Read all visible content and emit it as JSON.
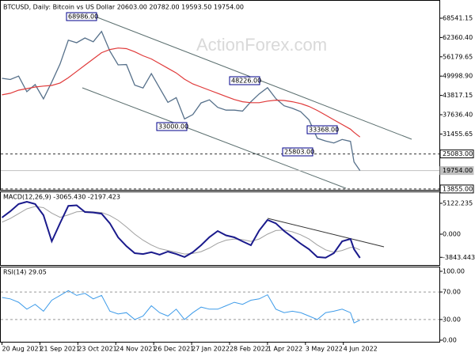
{
  "chart_data": [
    {
      "type": "line",
      "title": "BTCUSD, Daily: Bitcoin vs US Dollar  20603.00 20782.00 19593.50 19754.00",
      "watermark": "ActionForex.com",
      "x": [
        "2021-08-20",
        "2021-08-27",
        "2021-09-03",
        "2021-09-10",
        "2021-09-17",
        "2021-09-24",
        "2021-10-01",
        "2021-10-08",
        "2021-10-15",
        "2021-10-22",
        "2021-10-29",
        "2021-11-05",
        "2021-11-12",
        "2021-11-19",
        "2021-11-26",
        "2021-12-03",
        "2021-12-10",
        "2021-12-17",
        "2021-12-24",
        "2021-12-31",
        "2022-01-07",
        "2022-01-14",
        "2022-01-21",
        "2022-01-28",
        "2022-02-04",
        "2022-02-11",
        "2022-02-18",
        "2022-02-25",
        "2022-03-04",
        "2022-03-11",
        "2022-03-18",
        "2022-03-25",
        "2022-04-01",
        "2022-04-08",
        "2022-04-15",
        "2022-04-22",
        "2022-04-29",
        "2022-05-06",
        "2022-05-13",
        "2022-05-20",
        "2022-05-27",
        "2022-06-03",
        "2022-06-10",
        "2022-06-13",
        "2022-06-18"
      ],
      "xlim": [
        "2021-08-19",
        "2022-08-24"
      ],
      "series": [
        {
          "color": "#56708a",
          "width": 1.3,
          "values": [
            49300,
            48900,
            50000,
            45000,
            47300,
            42700,
            48100,
            53900,
            61500,
            60700,
            62200,
            61000,
            64300,
            58000,
            53600,
            53700,
            47100,
            46200,
            50800,
            46200,
            41600,
            43100,
            36300,
            37700,
            41400,
            42400,
            40000,
            39100,
            39100,
            38800,
            41800,
            44300,
            46300,
            42800,
            40500,
            39700,
            38600,
            36000,
            30100,
            29200,
            28600,
            29700,
            29100,
            22500,
            19754
          ]
        },
        {
          "color": "#e03a3a",
          "width": 1.2,
          "values": [
            44000,
            44500,
            45500,
            46000,
            46500,
            46800,
            47000,
            47800,
            49500,
            51500,
            53500,
            55500,
            57500,
            58500,
            59000,
            58800,
            57800,
            56500,
            55500,
            54000,
            52500,
            51000,
            49000,
            47500,
            46500,
            45500,
            44500,
            43500,
            42500,
            41800,
            41500,
            41500,
            42000,
            42300,
            42200,
            41800,
            41200,
            40300,
            39000,
            37500,
            36000,
            34500,
            33000,
            32000,
            30500
          ]
        }
      ],
      "ylim": [
        13575,
        73860
      ],
      "yticks": [
        {
          "value": 68541.15,
          "label": "68541.15"
        },
        {
          "value": 62360.4,
          "label": "62360.40"
        },
        {
          "value": 56179.65,
          "label": "56179.65"
        },
        {
          "value": 49998.9,
          "label": "49998.90"
        },
        {
          "value": 43817.15,
          "label": "43817.15"
        },
        {
          "value": 37636.4,
          "label": "37636.40"
        },
        {
          "value": 31455.65,
          "label": "31455.65"
        }
      ],
      "levels": [
        {
          "value": 25083,
          "label": "25083.00",
          "dashed": true,
          "color": "#333333"
        },
        {
          "value": 19754,
          "label": "19754.00",
          "dashed": false,
          "color": "#c0c0c0"
        },
        {
          "value": 13855,
          "label": "13855.00",
          "dashed": true,
          "color": "#333333"
        }
      ],
      "annotations": [
        "68986.00",
        "48226.00",
        "33000.00",
        "25803.00",
        "33368.00"
      ]
    },
    {
      "type": "line",
      "title": "MACD(12,26,9) -3065.430 -2197.423",
      "x": [
        "2021-08-20",
        "2021-08-27",
        "2021-09-03",
        "2021-09-10",
        "2021-09-17",
        "2021-09-24",
        "2021-10-01",
        "2021-10-08",
        "2021-10-15",
        "2021-10-22",
        "2021-10-29",
        "2021-11-05",
        "2021-11-12",
        "2021-11-19",
        "2021-11-26",
        "2021-12-03",
        "2021-12-10",
        "2021-12-17",
        "2021-12-24",
        "2021-12-31",
        "2022-01-07",
        "2022-01-14",
        "2022-01-21",
        "2022-01-28",
        "2022-02-04",
        "2022-02-11",
        "2022-02-18",
        "2022-02-25",
        "2022-03-04",
        "2022-03-11",
        "2022-03-18",
        "2022-03-25",
        "2022-04-01",
        "2022-04-08",
        "2022-04-15",
        "2022-04-22",
        "2022-04-29",
        "2022-05-06",
        "2022-05-13",
        "2022-05-20",
        "2022-05-27",
        "2022-06-03",
        "2022-06-10",
        "2022-06-13",
        "2022-06-18"
      ],
      "xlim": [
        "2021-08-19",
        "2022-08-24"
      ],
      "series": [
        {
          "color": "#a0a0a0",
          "width": 1,
          "values": [
            2000,
            2600,
            3400,
            4200,
            4600,
            4400,
            3500,
            2800,
            3200,
            3700,
            3800,
            3700,
            3600,
            3100,
            2300,
            1200,
            0,
            -1000,
            -1800,
            -2400,
            -2700,
            -3000,
            -3300,
            -3200,
            -2900,
            -2300,
            -1500,
            -1000,
            -800,
            -900,
            -1200,
            -800,
            0,
            600,
            700,
            400,
            -100,
            -800,
            -1800,
            -2600,
            -3000,
            -2700,
            -2200,
            -2200,
            -2600
          ]
        },
        {
          "color": "#1a1a8c",
          "width": 2,
          "values": [
            2760,
            3800,
            5000,
            5380,
            5000,
            3150,
            -1180,
            1840,
            4700,
            4800,
            3680,
            3600,
            3400,
            1800,
            -530,
            -2000,
            -3150,
            -3300,
            -3000,
            -3400,
            -2890,
            -3300,
            -3800,
            -3000,
            -1840,
            -500,
            525,
            -200,
            -525,
            -1200,
            -1840,
            600,
            2360,
            1800,
            525,
            -500,
            -1580,
            -2500,
            -3800,
            -3900,
            -3150,
            -1180,
            -790,
            -2500,
            -3940
          ]
        }
      ],
      "ylim": [
        -5253,
        6961
      ],
      "yticks": [
        5122.235,
        {
          "value": 0,
          "label": "0.000"
        },
        -3843.443
      ]
    },
    {
      "type": "line",
      "title": "RSI(14) 29.05",
      "x": [
        "2021-08-20",
        "2021-08-27",
        "2021-09-03",
        "2021-09-10",
        "2021-09-17",
        "2021-09-24",
        "2021-10-01",
        "2021-10-08",
        "2021-10-15",
        "2021-10-22",
        "2021-10-29",
        "2021-11-05",
        "2021-11-12",
        "2021-11-19",
        "2021-11-26",
        "2021-12-03",
        "2021-12-10",
        "2021-12-17",
        "2021-12-24",
        "2021-12-31",
        "2022-01-07",
        "2022-01-14",
        "2022-01-21",
        "2022-01-28",
        "2022-02-04",
        "2022-02-11",
        "2022-02-18",
        "2022-02-25",
        "2022-03-04",
        "2022-03-11",
        "2022-03-18",
        "2022-03-25",
        "2022-04-01",
        "2022-04-08",
        "2022-04-15",
        "2022-04-22",
        "2022-04-29",
        "2022-05-06",
        "2022-05-13",
        "2022-05-20",
        "2022-05-27",
        "2022-06-03",
        "2022-06-10",
        "2022-06-13",
        "2022-06-18"
      ],
      "xlim": [
        "2021-08-19",
        "2022-08-24"
      ],
      "series": [
        {
          "color": "#3d9be9",
          "width": 1,
          "values": [
            62,
            60,
            55,
            45,
            52,
            42,
            58,
            65,
            72,
            65,
            68,
            60,
            65,
            42,
            38,
            40,
            30,
            35,
            50,
            40,
            35,
            45,
            30,
            40,
            48,
            45,
            45,
            50,
            55,
            52,
            58,
            60,
            66,
            45,
            40,
            42,
            40,
            35,
            30,
            40,
            42,
            45,
            40,
            25,
            29.05
          ]
        }
      ],
      "ylim": [
        -2.3,
        105.7
      ],
      "yticks": [
        {
          "value": 100,
          "label": "100.00"
        },
        {
          "value": 70,
          "label": "70.00"
        },
        {
          "value": 30,
          "label": "30.00"
        },
        {
          "value": 0,
          "label": "0.00"
        }
      ],
      "hlines": [
        70,
        30
      ],
      "xticks": [
        {
          "value": "2021-08-20",
          "label": "20 Aug 2021"
        },
        {
          "value": "2021-09-21",
          "label": "21 Sep 2021"
        },
        {
          "value": "2021-10-23",
          "label": "23 Oct 2021"
        },
        {
          "value": "2021-11-24",
          "label": "24 Nov 2021"
        },
        {
          "value": "2021-12-26",
          "label": "26 Dec 2021"
        },
        {
          "value": "2022-01-27",
          "label": "27 Jan 2022"
        },
        {
          "value": "2022-02-28",
          "label": "28 Feb 2022"
        },
        {
          "value": "2022-04-01",
          "label": "1 Apr 2022"
        },
        {
          "value": "2022-05-03",
          "label": "3 May 2022"
        },
        {
          "value": "2022-06-04",
          "label": "4 Jun 2022"
        }
      ]
    }
  ]
}
